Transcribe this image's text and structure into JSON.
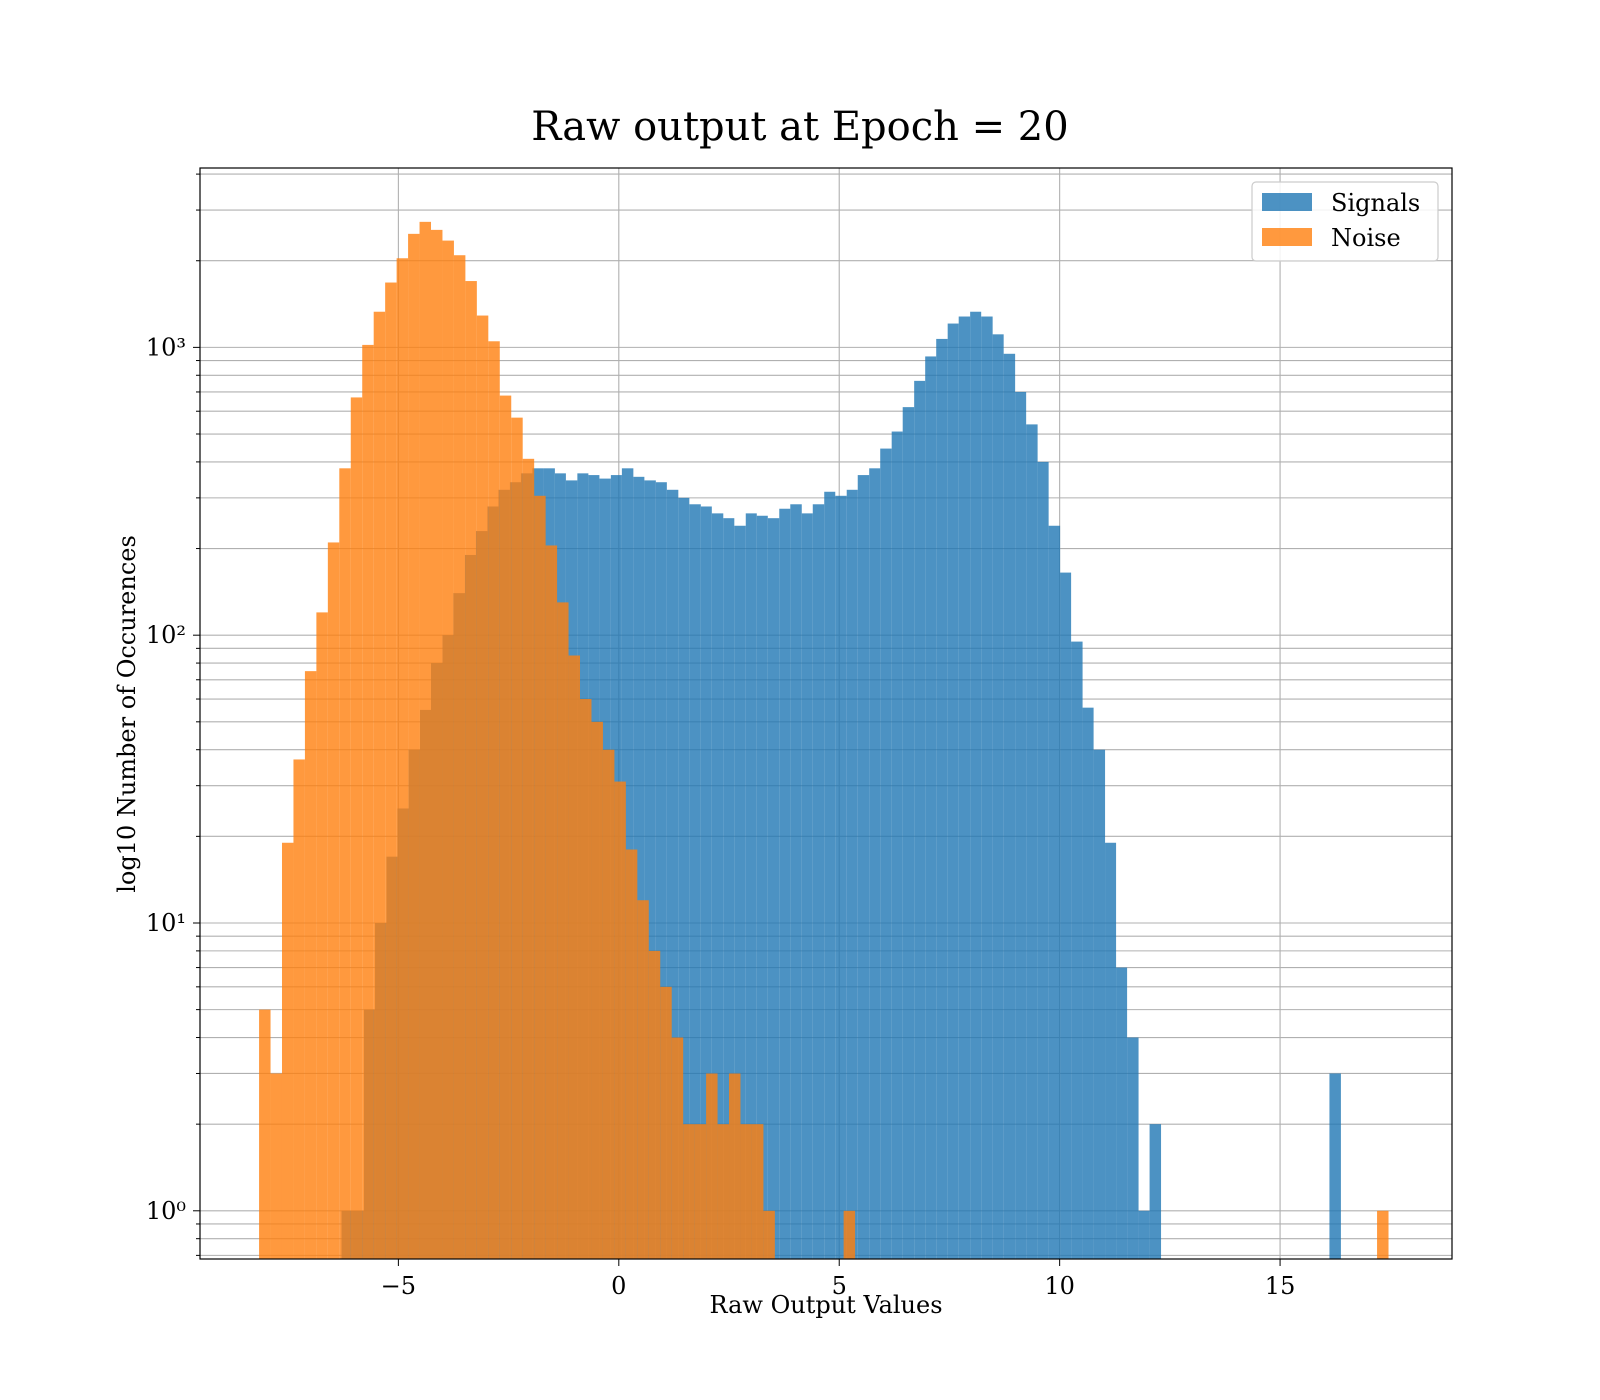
{
  "chart_data": {
    "type": "bar",
    "title": "Raw output at Epoch = 20",
    "xlabel": "Raw Output Values",
    "ylabel": "log10 Number of Occurences",
    "xlim": [
      -9.5,
      18.9
    ],
    "ylim": [
      0.68,
      4200
    ],
    "yscale": "log",
    "grid": true,
    "legend_position": "top-right",
    "x_ticks": [
      {
        "value": -5,
        "label": "−5"
      },
      {
        "value": 0,
        "label": "0"
      },
      {
        "value": 5,
        "label": "5"
      },
      {
        "value": 10,
        "label": "10"
      },
      {
        "value": 15,
        "label": "15"
      }
    ],
    "y_ticks": [
      {
        "value": 1,
        "label": "10⁰"
      },
      {
        "value": 10,
        "label": "10¹"
      },
      {
        "value": 100,
        "label": "10²"
      },
      {
        "value": 1000,
        "label": "10³"
      }
    ],
    "series": [
      {
        "name": "Signals",
        "color": "#1f77b4",
        "bins": [
          [
            -6.29,
            -6.04
          ],
          [
            -6.04,
            -5.78
          ],
          [
            -5.78,
            -5.53
          ],
          [
            -5.53,
            -5.27
          ],
          [
            -5.27,
            -5.02
          ],
          [
            -5.02,
            -4.77
          ],
          [
            -4.77,
            -4.51
          ],
          [
            -4.51,
            -4.26
          ],
          [
            -4.26,
            -4.0
          ],
          [
            -4.0,
            -3.75
          ],
          [
            -3.75,
            -3.49
          ],
          [
            -3.49,
            -3.24
          ],
          [
            -3.24,
            -2.98
          ],
          [
            -2.98,
            -2.73
          ],
          [
            -2.73,
            -2.47
          ],
          [
            -2.47,
            -2.22
          ],
          [
            -2.22,
            -1.96
          ],
          [
            -1.96,
            -1.71
          ],
          [
            -1.71,
            -1.45
          ],
          [
            -1.45,
            -1.2
          ],
          [
            -1.2,
            -0.94
          ],
          [
            -0.94,
            -0.69
          ],
          [
            -0.69,
            -0.44
          ],
          [
            -0.44,
            -0.18
          ],
          [
            -0.18,
            0.07
          ],
          [
            0.07,
            0.33
          ],
          [
            0.33,
            0.58
          ],
          [
            0.58,
            0.84
          ],
          [
            0.84,
            1.09
          ],
          [
            1.09,
            1.35
          ],
          [
            1.35,
            1.6
          ],
          [
            1.6,
            1.86
          ],
          [
            1.86,
            2.11
          ],
          [
            2.11,
            2.37
          ],
          [
            2.37,
            2.62
          ],
          [
            2.62,
            2.88
          ],
          [
            2.88,
            3.13
          ],
          [
            3.13,
            3.38
          ],
          [
            3.38,
            3.64
          ],
          [
            3.64,
            3.89
          ],
          [
            3.89,
            4.15
          ],
          [
            4.15,
            4.4
          ],
          [
            4.4,
            4.66
          ],
          [
            4.66,
            4.91
          ],
          [
            4.91,
            5.17
          ],
          [
            5.17,
            5.42
          ],
          [
            5.42,
            5.68
          ],
          [
            5.68,
            5.93
          ],
          [
            5.93,
            6.19
          ],
          [
            6.19,
            6.44
          ],
          [
            6.44,
            6.7
          ],
          [
            6.7,
            6.95
          ],
          [
            6.95,
            7.2
          ],
          [
            7.2,
            7.46
          ],
          [
            7.46,
            7.71
          ],
          [
            7.71,
            7.97
          ],
          [
            7.97,
            8.22
          ],
          [
            8.22,
            8.48
          ],
          [
            8.48,
            8.73
          ],
          [
            8.73,
            8.99
          ],
          [
            8.99,
            9.24
          ],
          [
            9.24,
            9.5
          ],
          [
            9.5,
            9.75
          ],
          [
            9.75,
            10.01
          ],
          [
            10.01,
            10.26
          ],
          [
            10.26,
            10.52
          ],
          [
            10.52,
            10.77
          ],
          [
            10.77,
            11.03
          ],
          [
            11.03,
            11.28
          ],
          [
            11.28,
            11.53
          ],
          [
            11.53,
            11.79
          ],
          [
            11.79,
            12.04
          ],
          [
            12.04,
            12.3
          ],
          [
            16.12,
            16.38
          ]
        ],
        "values": [
          1,
          1,
          5,
          10,
          17,
          25,
          40,
          55,
          80,
          100,
          140,
          190,
          230,
          280,
          320,
          340,
          365,
          380,
          380,
          365,
          345,
          365,
          360,
          350,
          360,
          380,
          355,
          345,
          340,
          320,
          300,
          285,
          280,
          265,
          255,
          240,
          265,
          260,
          255,
          275,
          285,
          265,
          285,
          315,
          305,
          320,
          360,
          380,
          445,
          510,
          620,
          765,
          930,
          1070,
          1210,
          1280,
          1330,
          1280,
          1110,
          950,
          700,
          540,
          400,
          240,
          165,
          95,
          56,
          40,
          19,
          7,
          4,
          1,
          2,
          3
        ]
      },
      {
        "name": "Noise",
        "color": "#ff7f0e",
        "bins": [
          [
            -8.16,
            -7.9
          ],
          [
            -7.9,
            -7.64
          ],
          [
            -7.64,
            -7.38
          ],
          [
            -7.38,
            -7.12
          ],
          [
            -7.12,
            -6.86
          ],
          [
            -6.86,
            -6.6
          ],
          [
            -6.6,
            -6.34
          ],
          [
            -6.34,
            -6.08
          ],
          [
            -6.08,
            -5.82
          ],
          [
            -5.82,
            -5.56
          ],
          [
            -5.56,
            -5.3
          ],
          [
            -5.3,
            -5.04
          ],
          [
            -5.04,
            -4.78
          ],
          [
            -4.78,
            -4.52
          ],
          [
            -4.52,
            -4.26
          ],
          [
            -4.26,
            -4.0
          ],
          [
            -4.0,
            -3.74
          ],
          [
            -3.74,
            -3.48
          ],
          [
            -3.48,
            -3.22
          ],
          [
            -3.22,
            -2.96
          ],
          [
            -2.96,
            -2.7
          ],
          [
            -2.7,
            -2.44
          ],
          [
            -2.44,
            -2.18
          ],
          [
            -2.18,
            -1.92
          ],
          [
            -1.92,
            -1.66
          ],
          [
            -1.66,
            -1.4
          ],
          [
            -1.4,
            -1.14
          ],
          [
            -1.14,
            -0.88
          ],
          [
            -0.88,
            -0.62
          ],
          [
            -0.62,
            -0.36
          ],
          [
            -0.36,
            -0.1
          ],
          [
            -0.1,
            0.16
          ],
          [
            0.16,
            0.42
          ],
          [
            0.42,
            0.68
          ],
          [
            0.68,
            0.94
          ],
          [
            0.94,
            1.2
          ],
          [
            1.2,
            1.46
          ],
          [
            1.46,
            1.72
          ],
          [
            1.72,
            1.98
          ],
          [
            1.98,
            2.24
          ],
          [
            2.24,
            2.5
          ],
          [
            2.5,
            2.76
          ],
          [
            2.76,
            3.02
          ],
          [
            3.02,
            3.28
          ],
          [
            3.28,
            3.54
          ],
          [
            5.1,
            5.36
          ],
          [
            17.2,
            17.46
          ]
        ],
        "values": [
          5,
          3,
          19,
          37,
          75,
          120,
          210,
          380,
          670,
          1020,
          1330,
          1680,
          2040,
          2480,
          2730,
          2560,
          2350,
          2090,
          1700,
          1290,
          1050,
          680,
          570,
          410,
          305,
          205,
          130,
          85,
          60,
          50,
          40,
          31,
          18,
          12,
          8,
          6,
          4,
          2,
          2,
          3,
          2,
          3,
          2,
          2,
          1,
          1,
          1
        ]
      }
    ]
  }
}
